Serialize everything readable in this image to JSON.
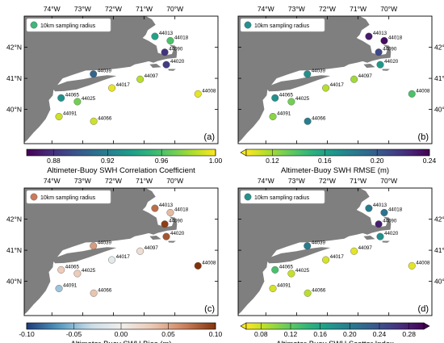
{
  "lon_labels": [
    "74°W",
    "73°W",
    "72°W",
    "71°W",
    "70°W"
  ],
  "lat_labels": [
    "42°N",
    "41°N",
    "40°N"
  ],
  "legend_label": "10km sampling radius",
  "stations": [
    {
      "id": "44013",
      "lon": -70.65,
      "lat": 42.35
    },
    {
      "id": "44018",
      "lon": -70.15,
      "lat": 42.21
    },
    {
      "id": "44090",
      "lon": -70.33,
      "lat": 41.84
    },
    {
      "id": "44020",
      "lon": -70.28,
      "lat": 41.44
    },
    {
      "id": "44039",
      "lon": -72.65,
      "lat": 41.14
    },
    {
      "id": "44097",
      "lon": -71.13,
      "lat": 40.97
    },
    {
      "id": "44017",
      "lon": -72.05,
      "lat": 40.69
    },
    {
      "id": "44008",
      "lon": -69.25,
      "lat": 40.5
    },
    {
      "id": "44065",
      "lon": -73.7,
      "lat": 40.37
    },
    {
      "id": "44025",
      "lon": -73.17,
      "lat": 40.25
    },
    {
      "id": "44091",
      "lon": -73.77,
      "lat": 39.77
    },
    {
      "id": "44066",
      "lon": -72.64,
      "lat": 39.62
    }
  ],
  "panels": [
    {
      "key": "a",
      "panel_label": "(a)",
      "colorbar_title": "Altimeter-Buoy SWH Correlation Coefficient",
      "colormap": "viridis",
      "reverse": false,
      "vmin": 0.86,
      "vmax": 1.0,
      "ticks": [
        "0.88",
        "0.92",
        "0.96",
        "1.00"
      ],
      "tick_values": [
        0.88,
        0.92,
        0.96,
        1.0
      ],
      "extend": "none",
      "legend_color": "#3fb67d",
      "values": {
        "44013": 0.94,
        "44018": 0.96,
        "44090": 0.88,
        "44020": 0.885,
        "44039": 0.905,
        "44097": 0.985,
        "44017": 0.995,
        "44008": 0.995,
        "44065": 0.93,
        "44025": 0.97,
        "44091": 0.99,
        "44066": 0.99
      }
    },
    {
      "key": "b",
      "panel_label": "(b)",
      "colorbar_title": "Altimeter-Buoy SWH RMSE (m)",
      "colormap": "viridis",
      "reverse": true,
      "vmin": 0.1,
      "vmax": 0.24,
      "ticks": [
        "0.12",
        "0.16",
        "0.20",
        "0.24"
      ],
      "tick_values": [
        0.12,
        0.16,
        0.2,
        0.24
      ],
      "extend": "min",
      "legend_color": "#26918e",
      "values": {
        "44013": 0.23,
        "44018": 0.235,
        "44090": 0.21,
        "44020": 0.165,
        "44039": 0.17,
        "44097": 0.12,
        "44017": 0.115,
        "44008": 0.14,
        "44065": 0.17,
        "44025": 0.13,
        "44091": 0.125,
        "44066": 0.18
      }
    },
    {
      "key": "c",
      "panel_label": "(c)",
      "colorbar_title": "Altimeter-Buoy SWH Bias (m)",
      "colormap": "diverging",
      "reverse": false,
      "vmin": -0.1,
      "vmax": 0.1,
      "ticks": [
        "-0.10",
        "-0.05",
        "0.00",
        "0.05",
        "0.10"
      ],
      "tick_values": [
        -0.1,
        -0.05,
        0,
        0.05,
        0.1
      ],
      "extend": "none",
      "legend_color": "#c97a5a",
      "values": {
        "44013": 0.075,
        "44018": 0.04,
        "44090": 0.095,
        "44020": 0.085,
        "44039": 0.055,
        "44097": 0.015,
        "44017": -0.01,
        "44008": 0.1,
        "44065": 0.03,
        "44025": 0.03,
        "44091": -0.045,
        "44066": 0.035
      }
    },
    {
      "key": "d",
      "panel_label": "(d)",
      "colorbar_title": "Altimeter-Buoy SWH Scatter Index",
      "colormap": "viridis",
      "reverse": true,
      "vmin": 0.06,
      "vmax": 0.3,
      "ticks": [
        "0.08",
        "0.12",
        "0.16",
        "0.20",
        "0.24",
        "0.28"
      ],
      "tick_values": [
        0.08,
        0.12,
        0.16,
        0.2,
        0.24,
        0.28
      ],
      "extend": "both",
      "legend_color": "#26918e",
      "values": {
        "44013": 0.2,
        "44018": 0.21,
        "44090": 0.28,
        "44020": 0.18,
        "44039": 0.2,
        "44097": 0.07,
        "44017": 0.075,
        "44008": 0.07,
        "44065": 0.13,
        "44025": 0.08,
        "44091": 0.075,
        "44066": 0.085
      }
    }
  ]
}
